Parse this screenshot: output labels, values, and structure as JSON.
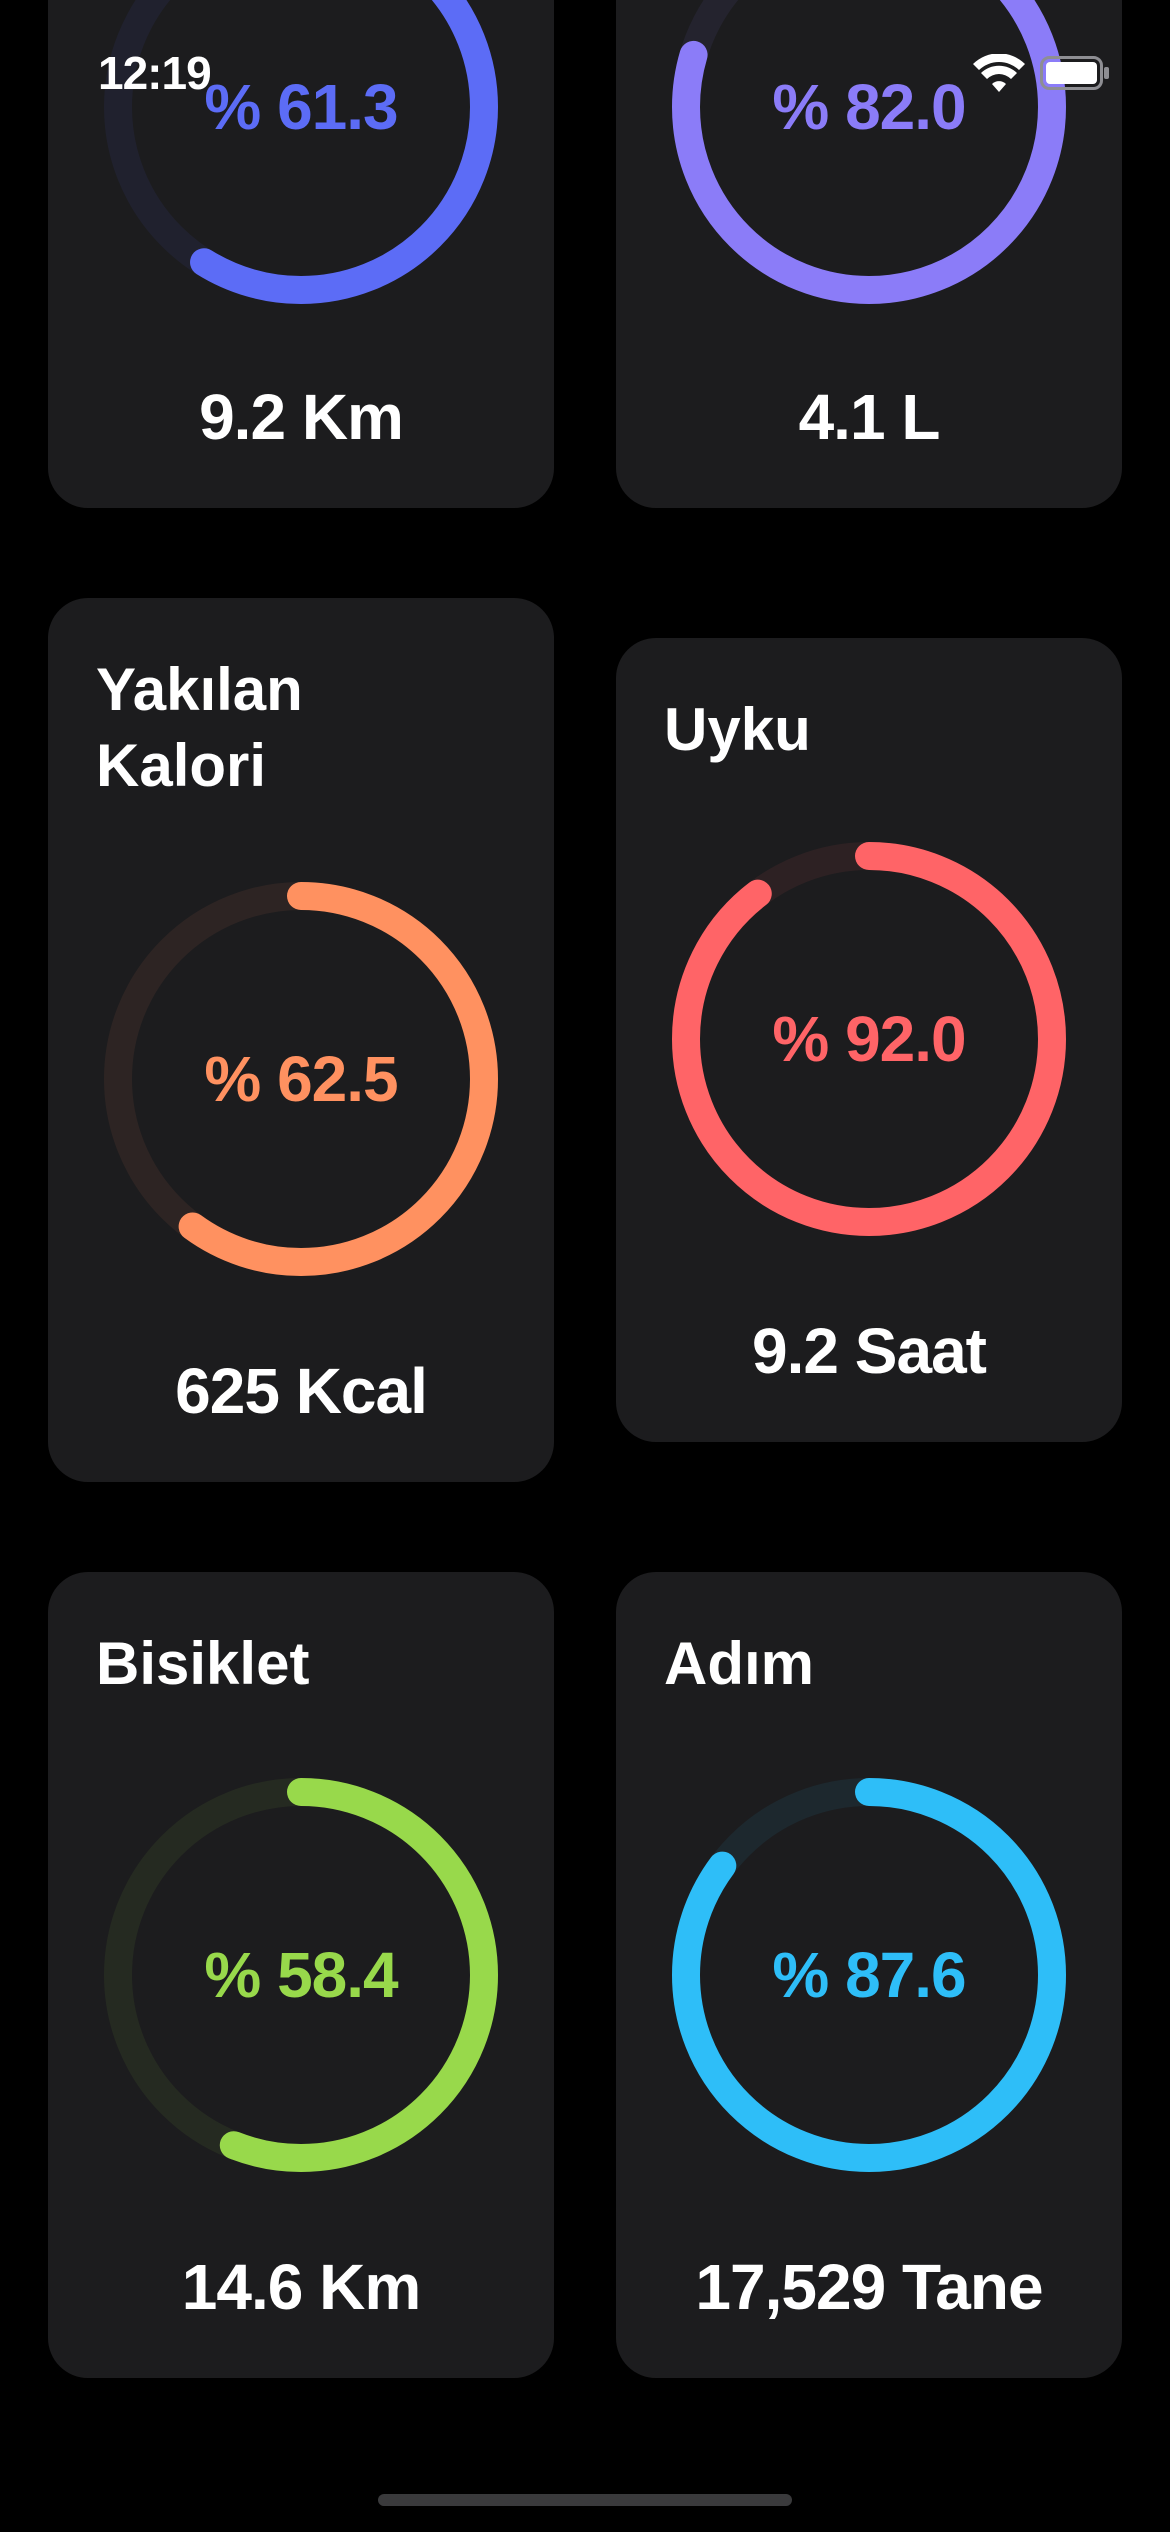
{
  "status_bar": {
    "time": "12:19"
  },
  "cards": [
    {
      "title": "",
      "percent_label": "% 61.3",
      "percent": 61.3,
      "amount": "9.2 Km",
      "color": "#5c6cf6"
    },
    {
      "title": "",
      "percent_label": "% 82.0",
      "percent": 82.0,
      "amount": "4.1 L",
      "color": "#8b7cf8"
    },
    {
      "title": "Yakılan\nKalori",
      "percent_label": "% 62.5",
      "percent": 62.5,
      "amount": "625 Kcal",
      "color": "#ff9160"
    },
    {
      "title": "Uyku",
      "percent_label": "% 92.0",
      "percent": 92.0,
      "amount": "9.2 Saat",
      "color": "#ff6467"
    },
    {
      "title": "Bisiklet",
      "percent_label": "% 58.4",
      "percent": 58.4,
      "amount": "14.6 Km",
      "color": "#98d94b"
    },
    {
      "title": "Adım",
      "percent_label": "% 87.6",
      "percent": 87.6,
      "amount": "17,529 Tane",
      "color": "#2ebef8"
    }
  ]
}
